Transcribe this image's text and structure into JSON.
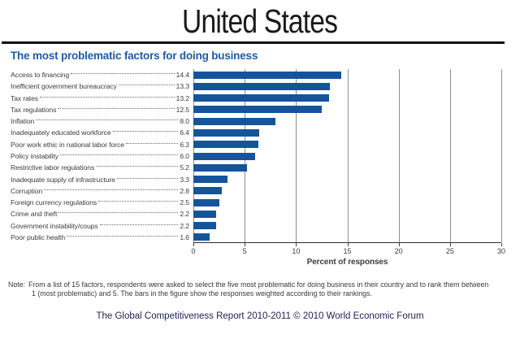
{
  "page": {
    "title": "United States"
  },
  "chart": {
    "subtitle": "The most problematic factors for doing business"
  },
  "chart_data": {
    "type": "bar",
    "orientation": "horizontal",
    "title": "The most problematic factors for doing business",
    "categories": [
      "Access to financing",
      "Inefficient government bureaucracy",
      "Tax rates",
      "Tax regulations",
      "Inflation",
      "Inadequately educated workforce",
      "Poor work ethic in national labor force",
      "Policy instability",
      "Restrictive labor regulations",
      "Inadequate supply of infrastructure",
      "Corruption",
      "Foreign currency regulations",
      "Crime and theft",
      "Government instability/coups",
      "Poor public health"
    ],
    "values": [
      14.4,
      13.3,
      13.2,
      12.5,
      8.0,
      6.4,
      6.3,
      6.0,
      5.2,
      3.3,
      2.8,
      2.5,
      2.2,
      2.2,
      1.6
    ],
    "value_decimals": 1,
    "xlabel": "Percent of responses",
    "xlim": [
      0,
      30
    ],
    "xticks": [
      0,
      5,
      10,
      15,
      20,
      25,
      30
    ],
    "grid": true,
    "legend": false,
    "bar_color": "#15549b"
  },
  "note": {
    "label": "Note:",
    "lines": [
      "From a list of 15 factors, respondents were asked to select the five most problematic for doing business in their country and to rank them between",
      "1 (most problematic) and 5. The bars in the figure show the responses weighted according to their rankings."
    ]
  },
  "footer": {
    "text": "The Global Competitiveness Report 2010-2011 © 2010 World Economic Forum"
  },
  "colors": {
    "bar": "#15549b",
    "subtitle": "#1e5ca6",
    "gridline": "#8f8f8f",
    "axis": "#2b2b2b",
    "footer": "#1e2152"
  }
}
